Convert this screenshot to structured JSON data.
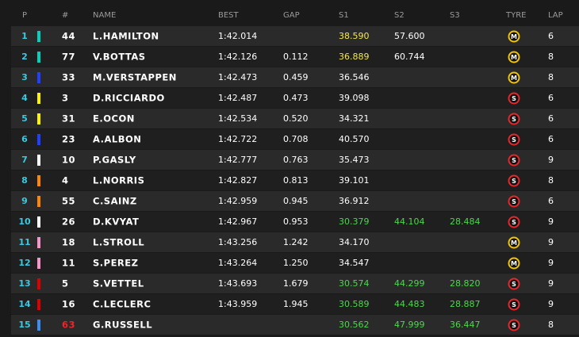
{
  "table": {
    "columns": [
      "P",
      "#",
      "NAME",
      "BEST",
      "GAP",
      "S1",
      "S2",
      "S3",
      "TYRE",
      "LAP"
    ],
    "sector_colors": {
      "purple": "#f2e84b",
      "green": "#4cd84c",
      "normal": "#ffffff"
    },
    "tyre_colors": {
      "M": "#f2c500",
      "S": "#e8262c"
    },
    "rows": [
      {
        "pos": 1,
        "team_color": "#00d2be",
        "number": 44,
        "name": "L.HAMILTON",
        "best": "1:42.014",
        "gap": null,
        "s1": "38.590",
        "s2": "57.600",
        "s3": null,
        "sectors": [
          "purple",
          "normal",
          "normal"
        ],
        "tyre": "M",
        "lap": 6
      },
      {
        "pos": 2,
        "team_color": "#00d2be",
        "number": 77,
        "name": "V.BOTTAS",
        "best": "1:42.126",
        "gap": "0.112",
        "s1": "36.889",
        "s2": "60.744",
        "s3": null,
        "sectors": [
          "purple",
          "normal",
          "normal"
        ],
        "tyre": "M",
        "lap": 8
      },
      {
        "pos": 3,
        "team_color": "#1e41ff",
        "number": 33,
        "name": "M.VERSTAPPEN",
        "best": "1:42.473",
        "gap": "0.459",
        "s1": "36.546",
        "s2": null,
        "s3": null,
        "sectors": [
          "normal",
          "normal",
          "normal"
        ],
        "tyre": "M",
        "lap": 8
      },
      {
        "pos": 4,
        "team_color": "#fff500",
        "number": 3,
        "name": "D.RICCIARDO",
        "best": "1:42.487",
        "gap": "0.473",
        "s1": "39.098",
        "s2": null,
        "s3": null,
        "sectors": [
          "normal",
          "normal",
          "normal"
        ],
        "tyre": "S",
        "lap": 6
      },
      {
        "pos": 5,
        "team_color": "#fff500",
        "number": 31,
        "name": "E.OCON",
        "best": "1:42.534",
        "gap": "0.520",
        "s1": "34.321",
        "s2": null,
        "s3": null,
        "sectors": [
          "normal",
          "normal",
          "normal"
        ],
        "tyre": "S",
        "lap": 6
      },
      {
        "pos": 6,
        "team_color": "#1e41ff",
        "number": 23,
        "name": "A.ALBON",
        "best": "1:42.722",
        "gap": "0.708",
        "s1": "40.570",
        "s2": null,
        "s3": null,
        "sectors": [
          "normal",
          "normal",
          "normal"
        ],
        "tyre": "S",
        "lap": 6
      },
      {
        "pos": 7,
        "team_color": "#ffffff",
        "number": 10,
        "name": "P.GASLY",
        "best": "1:42.777",
        "gap": "0.763",
        "s1": "35.473",
        "s2": null,
        "s3": null,
        "sectors": [
          "normal",
          "normal",
          "normal"
        ],
        "tyre": "S",
        "lap": 9
      },
      {
        "pos": 8,
        "team_color": "#ff8700",
        "number": 4,
        "name": "L.NORRIS",
        "best": "1:42.827",
        "gap": "0.813",
        "s1": "39.101",
        "s2": null,
        "s3": null,
        "sectors": [
          "normal",
          "normal",
          "normal"
        ],
        "tyre": "S",
        "lap": 8
      },
      {
        "pos": 9,
        "team_color": "#ff8700",
        "number": 55,
        "name": "C.SAINZ",
        "best": "1:42.959",
        "gap": "0.945",
        "s1": "36.912",
        "s2": null,
        "s3": null,
        "sectors": [
          "normal",
          "normal",
          "normal"
        ],
        "tyre": "S",
        "lap": 6
      },
      {
        "pos": 10,
        "team_color": "#ffffff",
        "number": 26,
        "name": "D.KVYAT",
        "best": "1:42.967",
        "gap": "0.953",
        "s1": "30.379",
        "s2": "44.104",
        "s3": "28.484",
        "sectors": [
          "green",
          "green",
          "green"
        ],
        "tyre": "S",
        "lap": 9
      },
      {
        "pos": 11,
        "team_color": "#f596c8",
        "number": 18,
        "name": "L.STROLL",
        "best": "1:43.256",
        "gap": "1.242",
        "s1": "34.170",
        "s2": null,
        "s3": null,
        "sectors": [
          "normal",
          "normal",
          "normal"
        ],
        "tyre": "M",
        "lap": 9
      },
      {
        "pos": 12,
        "team_color": "#f596c8",
        "number": 11,
        "name": "S.PEREZ",
        "best": "1:43.264",
        "gap": "1.250",
        "s1": "34.547",
        "s2": null,
        "s3": null,
        "sectors": [
          "normal",
          "normal",
          "normal"
        ],
        "tyre": "M",
        "lap": 9
      },
      {
        "pos": 13,
        "team_color": "#dc0000",
        "number": 5,
        "name": "S.VETTEL",
        "best": "1:43.693",
        "gap": "1.679",
        "s1": "30.574",
        "s2": "44.299",
        "s3": "28.820",
        "sectors": [
          "green",
          "green",
          "green"
        ],
        "tyre": "S",
        "lap": 9
      },
      {
        "pos": 14,
        "team_color": "#dc0000",
        "number": 16,
        "name": "C.LECLERC",
        "best": "1:43.959",
        "gap": "1.945",
        "s1": "30.589",
        "s2": "44.483",
        "s3": "28.887",
        "sectors": [
          "green",
          "green",
          "green"
        ],
        "tyre": "S",
        "lap": 9
      },
      {
        "pos": 15,
        "team_color": "#3a8ff2",
        "number": 63,
        "number_color": "#e8262c",
        "name": "G.RUSSELL",
        "best": null,
        "gap": null,
        "s1": "30.562",
        "s2": "47.999",
        "s3": "36.447",
        "sectors": [
          "green",
          "green",
          "green"
        ],
        "tyre": "S",
        "lap": 8
      }
    ]
  }
}
